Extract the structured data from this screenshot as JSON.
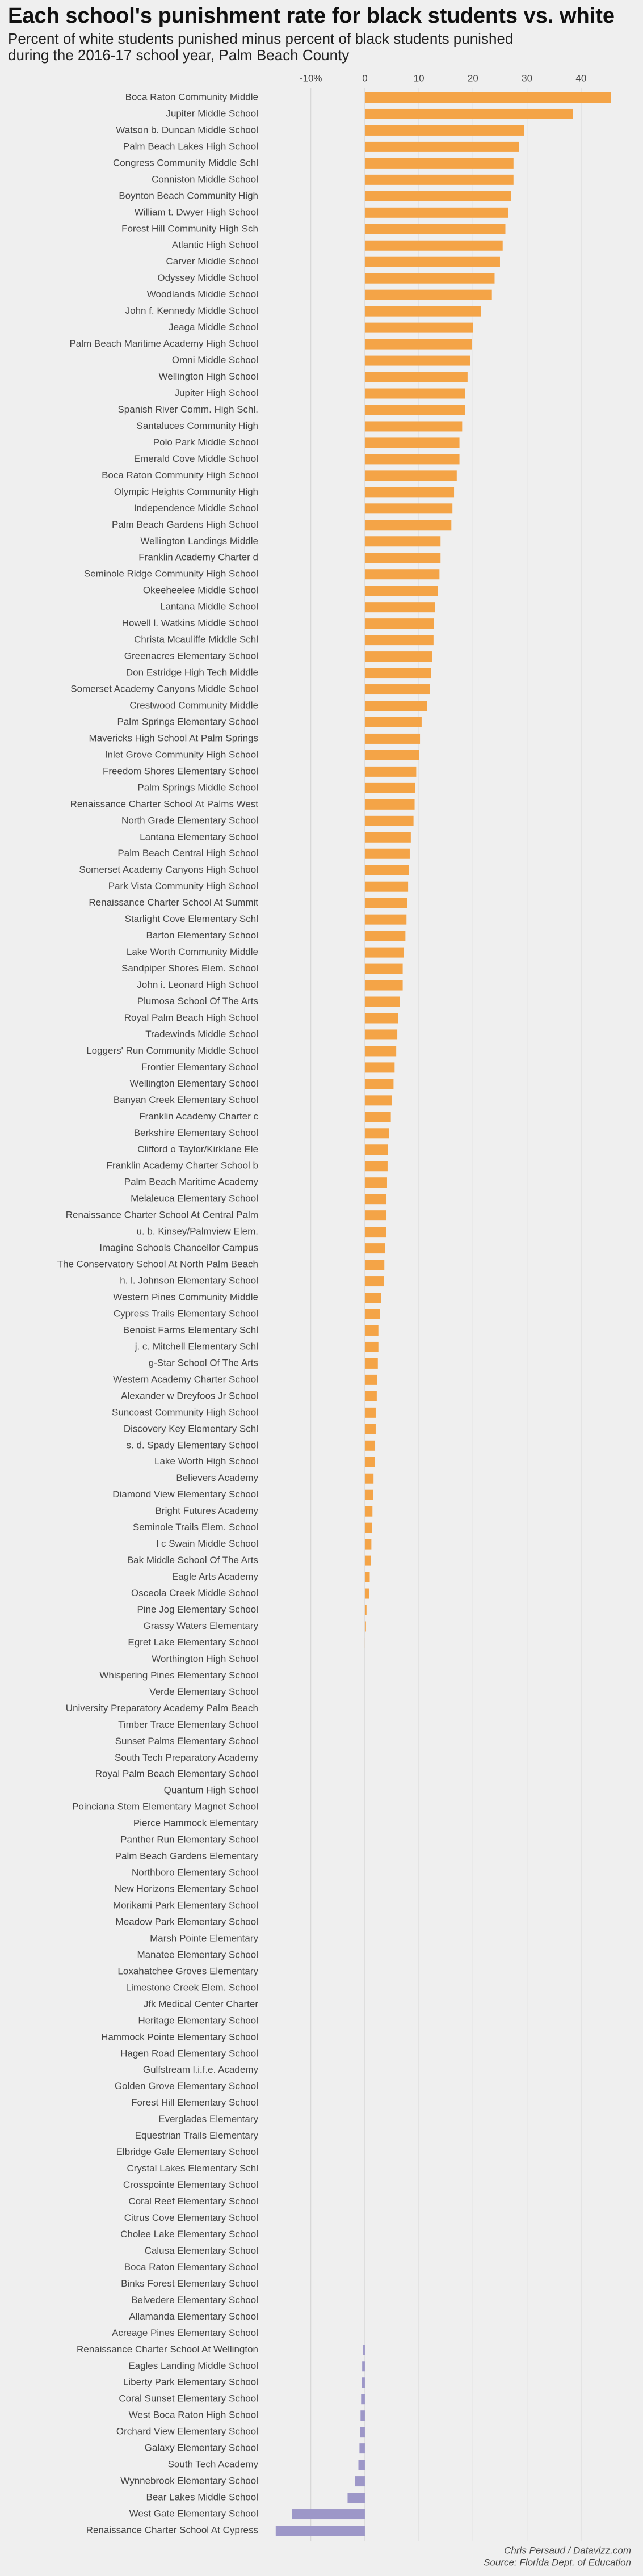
{
  "chart_data": {
    "type": "barh",
    "title": "Each school's punishment rate for black students vs. white",
    "subtitle": [
      "Percent of white students punished minus percent of black students punished",
      "during the 2016-17 school year, Palm Beach County"
    ],
    "caption": [
      "Chris Persaud / Datavizz.com",
      "Source: Florida Dept. of Education"
    ],
    "colors": {
      "positive": "#f4a447",
      "negative": "#9d97c8"
    },
    "xlim": [
      -19,
      48
    ],
    "xticks": [
      {
        "value": -10,
        "label": "-10%"
      },
      0,
      10,
      20,
      30,
      40
    ],
    "grid": true,
    "categories": [
      "Boca Raton Community Middle",
      "Jupiter Middle School",
      "Watson b. Duncan Middle School",
      "Palm Beach Lakes High School",
      "Congress Community Middle Schl",
      "Conniston Middle School",
      "Boynton Beach Community High",
      "William t. Dwyer High School",
      "Forest Hill Community High Sch",
      "Atlantic High School",
      "Carver Middle School",
      "Odyssey Middle School",
      "Woodlands Middle School",
      "John f. Kennedy Middle School",
      "Jeaga Middle School",
      "Palm Beach Maritime Academy High School",
      "Omni Middle School",
      "Wellington High School",
      "Jupiter High School",
      "Spanish River Comm. High Schl.",
      "Santaluces Community High",
      "Polo Park Middle School",
      "Emerald Cove Middle School",
      "Boca Raton Community High School",
      "Olympic Heights Community High",
      "Independence Middle School",
      "Palm Beach Gardens High School",
      "Wellington Landings Middle",
      "Franklin Academy Charter d",
      "Seminole Ridge Community High School",
      "Okeeheelee Middle School",
      "Lantana Middle School",
      "Howell l. Watkins Middle School",
      "Christa Mcauliffe Middle Schl",
      "Greenacres Elementary School",
      "Don Estridge High Tech Middle",
      "Somerset Academy Canyons Middle School",
      "Crestwood Community Middle",
      "Palm Springs Elementary School",
      "Mavericks High School At Palm Springs",
      "Inlet Grove Community High School",
      "Freedom Shores Elementary School",
      "Palm Springs Middle School",
      "Renaissance Charter School At Palms West",
      "North Grade Elementary School",
      "Lantana Elementary School",
      "Palm Beach Central High School",
      "Somerset Academy Canyons High School",
      "Park Vista Community High School",
      "Renaissance Charter School At Summit",
      "Starlight Cove Elementary Schl",
      "Barton Elementary School",
      "Lake Worth Community Middle",
      "Sandpiper Shores Elem. School",
      "John i. Leonard High School",
      "Plumosa School Of The Arts",
      "Royal Palm Beach High School",
      "Tradewinds Middle School",
      "Loggers' Run Community Middle School",
      "Frontier Elementary School",
      "Wellington Elementary School",
      "Banyan Creek Elementary School",
      "Franklin Academy Charter c",
      "Berkshire Elementary School",
      "Clifford o Taylor/Kirklane Ele",
      "Franklin Academy Charter School b",
      "Palm Beach Maritime Academy",
      "Melaleuca Elementary School",
      "Renaissance Charter School At Central Palm",
      "u. b. Kinsey/Palmview Elem.",
      "Imagine Schools Chancellor Campus",
      "The Conservatory School At North Palm Beach",
      "h. l. Johnson Elementary School",
      "Western Pines Community Middle",
      "Cypress Trails Elementary School",
      "Benoist Farms Elementary Schl",
      "j. c. Mitchell Elementary Schl",
      "g-Star School Of The Arts",
      "Western Academy Charter School",
      "Alexander w Dreyfoos Jr School",
      "Suncoast Community High School",
      "Discovery Key Elementary Schl",
      "s. d. Spady Elementary School",
      "Lake Worth High School",
      "Believers Academy",
      "Diamond View Elementary School",
      "Bright Futures Academy",
      "Seminole Trails Elem. School",
      "l c Swain Middle School",
      "Bak Middle School Of The Arts",
      "Eagle Arts Academy",
      "Osceola Creek Middle School",
      "Pine Jog Elementary School",
      "Grassy Waters Elementary",
      "Egret Lake Elementary School",
      "Worthington High School",
      "Whispering Pines Elementary School",
      "Verde Elementary School",
      "University Preparatory Academy Palm Beach",
      "Timber Trace Elementary School",
      "Sunset Palms Elementary School",
      "South Tech Preparatory Academy",
      "Royal Palm Beach Elementary School",
      "Quantum High School",
      "Poinciana Stem Elementary Magnet School",
      "Pierce Hammock Elementary",
      "Panther Run Elementary School",
      "Palm Beach Gardens Elementary",
      "Northboro Elementary School",
      "New Horizons Elementary School",
      "Morikami Park Elementary School",
      "Meadow Park Elementary School",
      "Marsh Pointe Elementary",
      "Manatee Elementary School",
      "Loxahatchee Groves Elementary",
      "Limestone Creek Elem. School",
      "Jfk Medical Center Charter",
      "Heritage Elementary School",
      "Hammock Pointe Elementary School",
      "Hagen Road Elementary School",
      "Gulfstream l.i.f.e. Academy",
      "Golden Grove Elementary School",
      "Forest Hill Elementary School",
      "Everglades Elementary",
      "Equestrian Trails Elementary",
      "Elbridge Gale Elementary School",
      "Crystal Lakes Elementary Schl",
      "Crosspointe Elementary School",
      "Coral Reef Elementary School",
      "Citrus Cove Elementary School",
      "Cholee Lake Elementary School",
      "Calusa Elementary School",
      "Boca Raton Elementary School",
      "Binks Forest Elementary School",
      "Belvedere Elementary School",
      "Allamanda Elementary School",
      "Acreage Pines Elementary School",
      "Renaissance Charter School At Wellington",
      "Eagles Landing Middle School",
      "Liberty Park Elementary School",
      "Coral Sunset Elementary School",
      "West Boca Raton High School",
      "Orchard View Elementary School",
      "Galaxy Elementary School",
      "South Tech Academy",
      "Wynnebrook Elementary School",
      "Bear Lakes Middle School",
      "West Gate Elementary School",
      "Renaissance Charter School At Cypress"
    ],
    "values": [
      45.5,
      38.5,
      29.5,
      28.5,
      27.5,
      27.5,
      27,
      26.5,
      26,
      25.5,
      25,
      24,
      23.5,
      21.5,
      20,
      19.8,
      19.5,
      19,
      18.5,
      18.5,
      18,
      17.5,
      17.5,
      17,
      16.5,
      16.2,
      16,
      14,
      14,
      13.8,
      13.5,
      13,
      12.8,
      12.7,
      12.5,
      12.2,
      12,
      11.5,
      10.5,
      10.2,
      10,
      9.5,
      9.3,
      9.2,
      9,
      8.5,
      8.3,
      8.2,
      8,
      7.8,
      7.7,
      7.5,
      7.2,
      7,
      7,
      6.5,
      6.2,
      6,
      5.8,
      5.5,
      5.3,
      5,
      4.8,
      4.5,
      4.3,
      4.2,
      4.1,
      4,
      4,
      3.9,
      3.7,
      3.6,
      3.5,
      3,
      2.8,
      2.5,
      2.5,
      2.4,
      2.3,
      2.2,
      2,
      2,
      1.9,
      1.8,
      1.6,
      1.5,
      1.4,
      1.3,
      1.2,
      1.1,
      0.9,
      0.8,
      0.3,
      0.2,
      0.1,
      0,
      0,
      0,
      0,
      0,
      0,
      0,
      0,
      0,
      0,
      0,
      0,
      0,
      0,
      0,
      0,
      0,
      0,
      0,
      0,
      0,
      0,
      0,
      0,
      0,
      0,
      0,
      0,
      0,
      0,
      0,
      0,
      0,
      0,
      0,
      0,
      0,
      0,
      0,
      0,
      0,
      0,
      -0.3,
      -0.5,
      -0.6,
      -0.7,
      -0.8,
      -0.9,
      -1,
      -1.2,
      -1.8,
      -3.2,
      -13.5,
      -16.5
    ]
  }
}
